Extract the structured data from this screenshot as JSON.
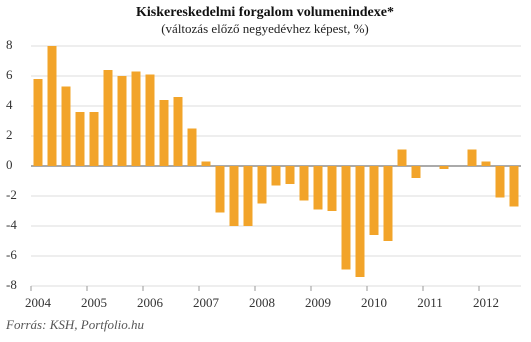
{
  "chart_data": {
    "type": "bar",
    "title": "Kiskereskedelmi forgalom volumenindexe*",
    "subtitle": "(változás előző negyedévhez képest, %)",
    "source": "Forrás: KSH, Portfolio.hu",
    "categories": [
      "2004",
      null,
      null,
      null,
      "2005",
      null,
      null,
      null,
      "2006",
      null,
      null,
      null,
      "2007",
      null,
      null,
      null,
      "2008",
      null,
      null,
      null,
      "2009",
      null,
      null,
      null,
      "2010",
      null,
      null,
      null,
      "2011",
      null,
      null,
      null,
      "2012",
      null,
      null
    ],
    "values": [
      5.8,
      8.0,
      5.3,
      3.6,
      3.6,
      6.4,
      6.0,
      6.3,
      6.1,
      4.4,
      4.6,
      2.5,
      0.3,
      -3.1,
      -4.0,
      -4.0,
      -2.5,
      -1.3,
      -1.2,
      -2.3,
      -2.9,
      -3.0,
      -6.9,
      -7.4,
      -4.6,
      -5.0,
      1.1,
      -0.8,
      0,
      -0.2,
      0,
      1.1,
      0.3,
      -2.1,
      -2.7
    ],
    "color": "#f2a42a",
    "ylim": [
      -8,
      8
    ],
    "yticks": [
      -8,
      -6,
      -4,
      -2,
      0,
      2,
      4,
      6,
      8
    ],
    "grid": true
  }
}
